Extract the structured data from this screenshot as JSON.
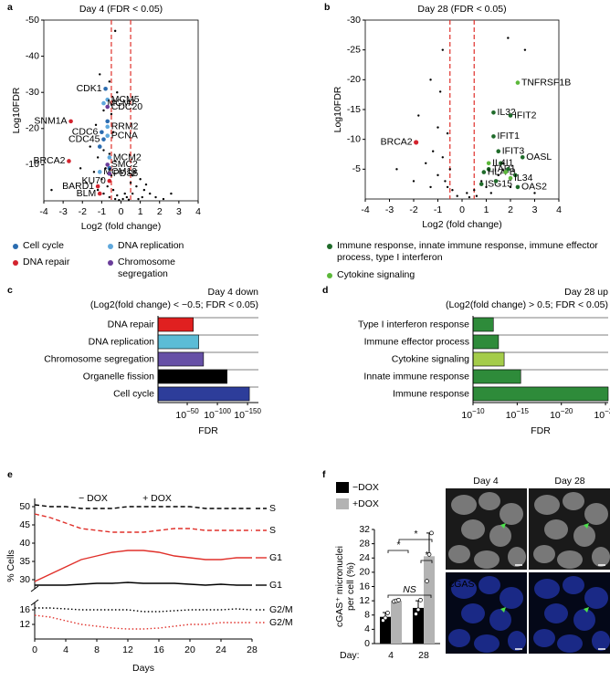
{
  "chart_data": [
    {
      "type": "scatter",
      "panel": "a",
      "title": "Day 4 (FDR < 0.05)",
      "xlabel": "Log2 (fold change)",
      "ylabel": "Log10FDR",
      "xlim": [
        -4,
        4
      ],
      "xticks": [
        -4,
        -3,
        -2,
        -1,
        0,
        1,
        2,
        3,
        4
      ],
      "ylim": [
        0,
        -50
      ],
      "yticks": [
        -50,
        -40,
        -30,
        -20,
        -10
      ],
      "thresholds": [
        -0.5,
        0.5
      ],
      "threshold_color": "#e0302a",
      "legend_position": "below",
      "background": {
        "color": "#000000",
        "x": [
          -0.3,
          -1.1,
          -0.6,
          -0.2,
          -0.9,
          -0.5,
          -1.3,
          -0.4,
          -1.6,
          -0.9,
          -0.6,
          -1.2,
          -0.3,
          -2.1,
          -0.8,
          -1.4,
          -0.5,
          -1.0,
          -3.6,
          -1.8,
          -0.7,
          -1.2,
          -0.4,
          -0.9,
          -0.2,
          -0.6,
          0.1,
          0.3,
          0.6,
          0.8,
          1.0,
          0.7,
          1.2,
          1.5,
          1.1,
          0.9,
          1.8,
          2.2,
          0.4,
          -0.1,
          0.5,
          0.2,
          -0.3,
          1.3,
          0.6,
          2.6
        ],
        "values": [
          -47,
          -35,
          -33,
          -30,
          -25,
          -24,
          -21,
          -19,
          -15,
          -14,
          -13,
          -12,
          -11,
          -9,
          -9,
          -8,
          -7,
          -6,
          -3,
          -5,
          -4,
          -3,
          -3,
          -2,
          -1.5,
          -1,
          -0.5,
          -1,
          -2,
          -4,
          -6,
          -8,
          -3,
          -2,
          -1,
          -0.5,
          -1,
          -0.5,
          -0.3,
          -0.2,
          -5,
          -2,
          -0.5,
          -4.5,
          -7,
          -2
        ]
      },
      "series": [
        {
          "name": "Cell cycle",
          "color": "#2b6cb0",
          "x": [
            -0.8,
            -1.0,
            -0.9,
            -0.7,
            -1.1,
            -0.6
          ],
          "values": [
            -31,
            -19,
            -17,
            -22,
            -15,
            -9
          ],
          "labels": [
            "CDK1",
            "CDC6",
            "CDC45",
            null,
            null,
            null
          ]
        },
        {
          "name": "DNA replication",
          "color": "#5fa8dc",
          "x": [
            -0.7,
            -0.9,
            -0.7,
            -0.7,
            -0.6,
            -1.1
          ],
          "values": [
            -28,
            -27,
            -20.5,
            -18,
            -12,
            -8
          ],
          "labels": [
            "MCM5",
            "MCM7",
            "RRM2",
            "PCNA",
            "MCM2",
            "MCM10"
          ]
        },
        {
          "name": "DNA repair",
          "color": "#d3232e",
          "x": [
            -2.6,
            -2.7,
            -0.6,
            -1.2,
            -1.1
          ],
          "values": [
            -22,
            -11,
            -5.5,
            -4,
            -2
          ],
          "labels": [
            "SNM1A",
            "BRCA2",
            "KU70",
            "BARD1",
            "BLM"
          ]
        },
        {
          "name": "Chromosome segregation",
          "color": "#6a3d9a",
          "x": [
            -0.7,
            -0.7,
            -0.6
          ],
          "values": [
            -26,
            -10,
            -7.5
          ],
          "labels": [
            "CDC20",
            "SMC2",
            "PDS5"
          ]
        }
      ]
    },
    {
      "type": "scatter",
      "panel": "b",
      "title": "Day 28 (FDR < 0.05)",
      "xlabel": "Log2 (fold change)",
      "ylabel": "Log10FDR",
      "xlim": [
        -4,
        4
      ],
      "xticks": [
        -4,
        -3,
        -2,
        -1,
        0,
        1,
        2,
        3,
        4
      ],
      "ylim": [
        0,
        -30
      ],
      "yticks": [
        -30,
        -25,
        -20,
        -15,
        -10,
        -5
      ],
      "thresholds": [
        -0.5,
        0.5
      ],
      "threshold_color": "#e0302a",
      "legend_position": "below",
      "background": {
        "color": "#000000",
        "x": [
          -0.8,
          -1.3,
          -0.9,
          -2.7,
          -1.8,
          -1.0,
          -0.6,
          -1.2,
          -0.8,
          -1.5,
          -0.5,
          -1.0,
          -0.7,
          -1.3,
          -0.4,
          -0.2,
          0.2,
          0.5,
          0.8,
          1.0,
          1.5,
          1.9,
          2.6,
          1.2,
          2.0,
          0.3,
          -0.6,
          -2.0,
          3.0,
          1.7,
          0.6
        ],
        "values": [
          -25,
          -20,
          -18,
          -5,
          -14,
          -12,
          -11,
          -8,
          -7,
          -6,
          -5,
          -4,
          -3,
          -2,
          -1.5,
          -0.5,
          -1,
          -1.5,
          -3,
          -2,
          -4,
          -27,
          -25,
          -1,
          -2,
          -0.3,
          -2,
          -3,
          -1,
          -6,
          -0.5
        ]
      },
      "series": [
        {
          "name": "Immune response, innate immune response, immune effector process, type I interferon",
          "color": "#1f6b2a",
          "x": [
            1.3,
            2.0,
            1.3,
            1.5,
            2.5,
            1.1,
            0.9,
            0.8,
            2.3,
            1.6,
            1.9,
            2.2,
            1.4
          ],
          "values": [
            -14.5,
            -14,
            -10.5,
            -8,
            -7,
            -5,
            -4.5,
            -2.5,
            -2,
            -6,
            -5,
            -4,
            -3
          ],
          "labels": [
            "IL32",
            "IFIT2",
            "IFIT1",
            "IFIT3",
            "OASL",
            "TAP1",
            "HLA-B",
            "ISG15",
            "OAS2",
            null,
            null,
            null,
            null
          ]
        },
        {
          "name": "Cytokine signaling",
          "color": "#5cb83a",
          "x": [
            2.3,
            1.1,
            2.0,
            1.8
          ],
          "values": [
            -19.5,
            -6,
            -3.5,
            -4.5
          ],
          "labels": [
            "TNFRSF1B",
            "IL4I1",
            "IL34",
            null
          ]
        }
      ],
      "annotated_points": {
        "color": "#d3232e",
        "x": [
          -1.9
        ],
        "values": [
          -9.5
        ],
        "labels": [
          "BRCA2"
        ]
      }
    },
    {
      "type": "bar",
      "orientation": "horizontal",
      "panel": "c",
      "title": "Day 4 down",
      "subtitle": "(Log2(fold change) < −0.5; FDR < 0.05)",
      "xlabel": "FDR",
      "xscale": "log",
      "xlim": [
        0.03,
        1e-168
      ],
      "xticks": [
        {
          "value": 1e-50,
          "label": "10−50"
        },
        {
          "value": 1e-100,
          "label": "10−100"
        },
        {
          "value": 1e-150,
          "label": "10−150"
        }
      ],
      "categories": [
        "DNA repair",
        "DNA replication",
        "Chromosome segregation",
        "Organelle fission",
        "Cell cycle"
      ],
      "values": [
        1e-60,
        1e-69,
        1e-77,
        1e-116,
        1e-153
      ],
      "colors": [
        "#e02020",
        "#5bbcd6",
        "#6650a6",
        "#000000",
        "#2d3d9a"
      ]
    },
    {
      "type": "bar",
      "orientation": "horizontal",
      "panel": "d",
      "title": "Day 28 up",
      "subtitle": "(Log2(fold change) > 0.5; FDR < 0.05)",
      "xlabel": "FDR",
      "xscale": "log",
      "xlim": [
        1e-10,
        5e-26
      ],
      "xticks": [
        {
          "value": 1e-10,
          "label": "10−10"
        },
        {
          "value": 1e-15,
          "label": "10−15"
        },
        {
          "value": 1e-20,
          "label": "10−20"
        },
        {
          "value": 1e-25,
          "label": "10−25"
        }
      ],
      "categories": [
        "Type I interferon response",
        "Immune effector process",
        "Cytokine signaling",
        "Innate immune response",
        "Immune response"
      ],
      "values": [
        5e-13,
        1.3e-13,
        3e-14,
        4e-16,
        5e-26
      ],
      "colors": [
        "#2e8b3a",
        "#2e8b3a",
        "#a4cc4a",
        "#2e8b3a",
        "#2e8b3a"
      ]
    },
    {
      "type": "line",
      "panel": "e",
      "xlabel": "Days",
      "ylabel": "% Cells",
      "x": [
        0,
        2,
        4,
        6,
        8,
        10,
        12,
        14,
        16,
        18,
        20,
        22,
        24,
        26,
        28
      ],
      "xlim": [
        0,
        28
      ],
      "xticks": [
        0,
        4,
        8,
        12,
        16,
        20,
        24,
        28
      ],
      "ylim": [
        27.5,
        53.75
      ],
      "yticks": [
        30,
        35,
        40,
        45,
        50
      ],
      "ylim_lower": [
        8,
        18
      ],
      "yticks_lower": [
        12,
        16
      ],
      "annotations": [
        {
          "text": "− DOX",
          "color": "#000000"
        },
        {
          "text": "+ DOX",
          "color": "#e0302a"
        }
      ],
      "series": [
        {
          "name": "S",
          "color": "#000000",
          "dash": "dashed",
          "values": [
            50.5,
            50,
            50,
            49.5,
            49.5,
            49.5,
            50,
            50,
            50,
            50,
            50,
            49.5,
            49.5,
            49.5,
            49.5
          ]
        },
        {
          "name": "S",
          "color": "#e0302a",
          "dash": "dashed",
          "values": [
            48,
            47,
            45.5,
            44,
            43.5,
            43,
            43,
            43,
            43.5,
            44,
            44,
            43.5,
            43.5,
            43.5,
            43.5
          ]
        },
        {
          "name": "G1",
          "color": "#e0302a",
          "dash": "solid",
          "values": [
            29.5,
            31.5,
            33.5,
            35.5,
            36.5,
            37.5,
            38,
            38,
            37.5,
            36.5,
            36,
            35.5,
            35.5,
            36,
            36
          ]
        },
        {
          "name": "G1",
          "color": "#000000",
          "dash": "solid",
          "values": [
            28.5,
            28.5,
            28.5,
            28.75,
            29,
            29,
            29.25,
            29,
            29,
            29,
            28.75,
            28.5,
            28.75,
            28.5,
            28.5
          ]
        },
        {
          "name": "G2/M",
          "color": "#000000",
          "dash": "dotted",
          "axis": "lower",
          "values": [
            16.5,
            16.5,
            16.25,
            16,
            16,
            16,
            16,
            15.5,
            15.5,
            15.75,
            16,
            16,
            16,
            16.25,
            16
          ]
        },
        {
          "name": "G2/M",
          "color": "#e0302a",
          "dash": "dotted",
          "axis": "lower",
          "values": [
            14.5,
            14,
            13,
            12,
            11.5,
            11,
            10.75,
            10.75,
            11,
            11.5,
            12,
            12,
            12.5,
            12.5,
            12.5
          ]
        }
      ]
    },
    {
      "type": "bar",
      "panel": "f",
      "ylabel": [
        "cGAS⁺ micronuclei",
        "per cell (%)"
      ],
      "category_label": "Day:",
      "categories": [
        "4",
        "28"
      ],
      "ylim": [
        0,
        32
      ],
      "yticks": [
        0,
        4,
        8,
        12,
        16,
        20,
        24,
        28,
        32
      ],
      "series": [
        {
          "name": "−DOX",
          "color": "#000000",
          "values": [
            7.5,
            10
          ],
          "errors": [
            1.2,
            2
          ],
          "points": [
            [
              6.5,
              7.2,
              8.6
            ],
            [
              8.3,
              9.5,
              12.2
            ]
          ]
        },
        {
          "name": "+DOX",
          "color": "#b3b3b3",
          "values": [
            12,
            24.5
          ],
          "errors": [
            0.3,
            6.5
          ],
          "points": [
            [
              11.8,
              12,
              12.2
            ],
            [
              17.5,
              25,
              31
            ]
          ]
        }
      ],
      "significance": [
        "*",
        "NS",
        "*",
        "*"
      ]
    }
  ],
  "micrographs": {
    "columns": [
      "Day 4",
      "Day 28"
    ],
    "stain": "cGAS"
  }
}
